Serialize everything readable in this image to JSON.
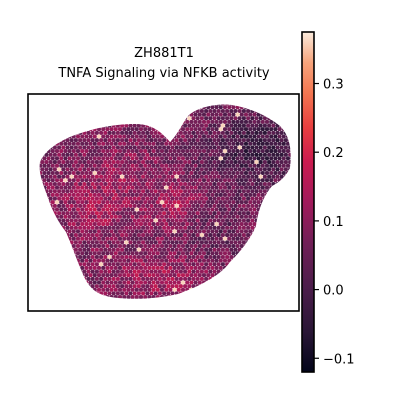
{
  "chart_data": {
    "type": "heatmap",
    "title_line1": "ZH881T1",
    "title_line2": "TNFA Signaling via NFKB activity",
    "colormap": "rocket",
    "colorbar": {
      "vmin": -0.12,
      "vmax": 0.375,
      "ticks": [
        -0.1,
        0.0,
        0.1,
        0.2,
        0.3
      ],
      "tick_labels": [
        "−0.1",
        "0.0",
        "0.1",
        "0.2",
        "0.3"
      ]
    },
    "colors": {
      "low": "#0c0a1e",
      "mid_low": "#491d4d",
      "mid": "#a21c4e",
      "mid_high": "#ee5b40",
      "high": "#fbe0c6"
    }
  }
}
